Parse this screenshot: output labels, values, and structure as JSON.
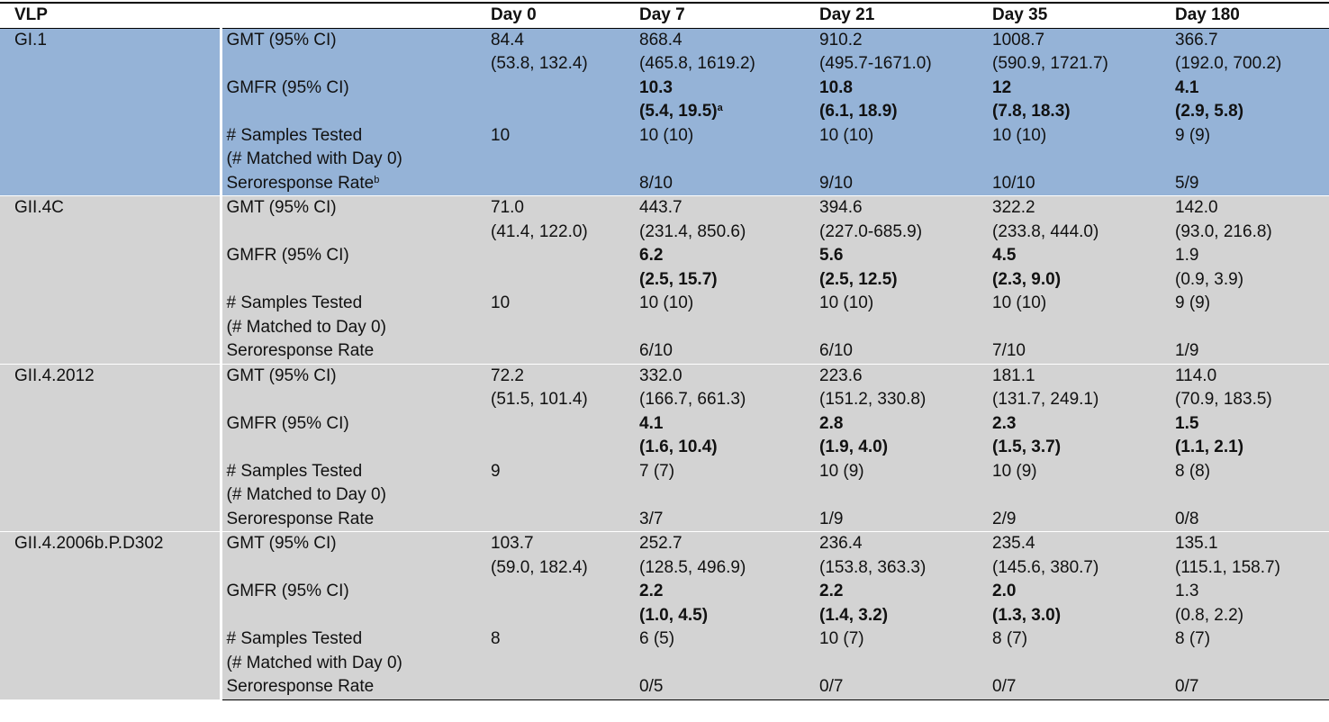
{
  "table": {
    "header": [
      "VLP",
      "Day 0",
      "Day 7",
      "Day 21",
      "Day 35",
      "Day 180"
    ],
    "groups": [
      {
        "name": "GI.1",
        "color": "#95b3d7",
        "rows": [
          {
            "label": {
              "lines": [
                "GMT (95% CI)"
              ]
            },
            "cells": [
              {
                "lines": [
                  "84.4",
                  "(53.8, 132.4)"
                ]
              },
              {
                "lines": [
                  "868.4",
                  "(465.8, 1619.2)"
                ]
              },
              {
                "lines": [
                  "910.2",
                  "(495.7-1671.0)"
                ]
              },
              {
                "lines": [
                  "1008.7",
                  "(590.9, 1721.7)"
                ]
              },
              {
                "lines": [
                  "366.7",
                  "(192.0, 700.2)"
                ]
              }
            ]
          },
          {
            "label": {
              "lines": [
                "GMFR (95% CI)"
              ]
            },
            "cells": [
              null,
              {
                "lines": [
                  "10.3",
                  "(5.4, 19.5)"
                ],
                "bold": true,
                "sup": "a"
              },
              {
                "lines": [
                  "10.8",
                  "(6.1, 18.9)"
                ],
                "bold": true
              },
              {
                "lines": [
                  "12",
                  "(7.8, 18.3)"
                ],
                "bold": true
              },
              {
                "lines": [
                  "4.1",
                  "(2.9, 5.8)"
                ],
                "bold": true
              }
            ]
          },
          {
            "label": {
              "lines": [
                "# Samples Tested",
                "(# Matched with Day 0)"
              ]
            },
            "cells": [
              {
                "lines": [
                  "10"
                ]
              },
              {
                "lines": [
                  "10 (10)"
                ]
              },
              {
                "lines": [
                  "10 (10)"
                ]
              },
              {
                "lines": [
                  "10 (10)"
                ]
              },
              {
                "lines": [
                  "9 (9)"
                ]
              }
            ]
          },
          {
            "label": {
              "lines": [
                "Seroresponse Rate"
              ],
              "sup": "b"
            },
            "cells": [
              null,
              {
                "lines": [
                  "8/10"
                ]
              },
              {
                "lines": [
                  "9/10"
                ]
              },
              {
                "lines": [
                  "10/10"
                ]
              },
              {
                "lines": [
                  "5/9"
                ]
              }
            ]
          }
        ]
      },
      {
        "name": "GII.4C",
        "color": "#d3d3d3",
        "rows": [
          {
            "label": {
              "lines": [
                "GMT (95% CI)"
              ]
            },
            "cells": [
              {
                "lines": [
                  "71.0",
                  "(41.4, 122.0)"
                ]
              },
              {
                "lines": [
                  "443.7",
                  "(231.4, 850.6)"
                ]
              },
              {
                "lines": [
                  "394.6",
                  "(227.0-685.9)"
                ]
              },
              {
                "lines": [
                  "322.2",
                  "(233.8, 444.0)"
                ]
              },
              {
                "lines": [
                  "142.0",
                  "(93.0, 216.8)"
                ]
              }
            ]
          },
          {
            "label": {
              "lines": [
                "GMFR (95% CI)"
              ]
            },
            "cells": [
              null,
              {
                "lines": [
                  "6.2",
                  "(2.5, 15.7)"
                ],
                "bold": true
              },
              {
                "lines": [
                  "5.6",
                  "(2.5, 12.5)"
                ],
                "bold": true
              },
              {
                "lines": [
                  "4.5",
                  "(2.3, 9.0)"
                ],
                "bold": true
              },
              {
                "lines": [
                  "1.9",
                  "(0.9, 3.9)"
                ]
              }
            ]
          },
          {
            "label": {
              "lines": [
                "# Samples Tested",
                "(# Matched to Day 0)"
              ]
            },
            "cells": [
              {
                "lines": [
                  "10"
                ]
              },
              {
                "lines": [
                  "10 (10)"
                ]
              },
              {
                "lines": [
                  "10 (10)"
                ]
              },
              {
                "lines": [
                  "10 (10)"
                ]
              },
              {
                "lines": [
                  "9 (9)"
                ]
              }
            ]
          },
          {
            "label": {
              "lines": [
                "Seroresponse Rate"
              ]
            },
            "cells": [
              null,
              {
                "lines": [
                  "6/10"
                ]
              },
              {
                "lines": [
                  "6/10"
                ]
              },
              {
                "lines": [
                  "7/10"
                ]
              },
              {
                "lines": [
                  "1/9"
                ]
              }
            ]
          }
        ]
      },
      {
        "name": "GII.4.2012",
        "color": "#d3d3d3",
        "rows": [
          {
            "label": {
              "lines": [
                "GMT (95% CI)"
              ]
            },
            "cells": [
              {
                "lines": [
                  "72.2",
                  "(51.5, 101.4)"
                ]
              },
              {
                "lines": [
                  "332.0",
                  "(166.7, 661.3)"
                ]
              },
              {
                "lines": [
                  "223.6",
                  "(151.2, 330.8)"
                ]
              },
              {
                "lines": [
                  "181.1",
                  "(131.7, 249.1)"
                ]
              },
              {
                "lines": [
                  "114.0",
                  "(70.9, 183.5)"
                ]
              }
            ]
          },
          {
            "label": {
              "lines": [
                "GMFR (95% CI)"
              ]
            },
            "cells": [
              null,
              {
                "lines": [
                  "4.1",
                  "(1.6, 10.4)"
                ],
                "bold": true
              },
              {
                "lines": [
                  "2.8",
                  "(1.9, 4.0)"
                ],
                "bold": true
              },
              {
                "lines": [
                  "2.3",
                  "(1.5, 3.7)"
                ],
                "bold": true
              },
              {
                "lines": [
                  "1.5",
                  "(1.1, 2.1)"
                ],
                "bold": true
              }
            ]
          },
          {
            "label": {
              "lines": [
                "# Samples Tested",
                "(# Matched to Day 0)"
              ]
            },
            "cells": [
              {
                "lines": [
                  "9"
                ]
              },
              {
                "lines": [
                  "7 (7)"
                ]
              },
              {
                "lines": [
                  "10 (9)"
                ]
              },
              {
                "lines": [
                  "10 (9)"
                ]
              },
              {
                "lines": [
                  "8 (8)"
                ]
              }
            ]
          },
          {
            "label": {
              "lines": [
                "Seroresponse Rate"
              ]
            },
            "cells": [
              null,
              {
                "lines": [
                  "3/7"
                ]
              },
              {
                "lines": [
                  "1/9"
                ]
              },
              {
                "lines": [
                  "2/9"
                ]
              },
              {
                "lines": [
                  "0/8"
                ]
              }
            ]
          }
        ]
      },
      {
        "name": "GII.4.2006b.P.D302",
        "color": "#d3d3d3",
        "rows": [
          {
            "label": {
              "lines": [
                "GMT (95% CI)"
              ]
            },
            "cells": [
              {
                "lines": [
                  "103.7",
                  "(59.0, 182.4)"
                ]
              },
              {
                "lines": [
                  "252.7",
                  "(128.5, 496.9)"
                ]
              },
              {
                "lines": [
                  "236.4",
                  "(153.8, 363.3)"
                ]
              },
              {
                "lines": [
                  "235.4",
                  "(145.6, 380.7)"
                ]
              },
              {
                "lines": [
                  "135.1",
                  "(115.1, 158.7)"
                ]
              }
            ]
          },
          {
            "label": {
              "lines": [
                "GMFR (95% CI)"
              ]
            },
            "cells": [
              null,
              {
                "lines": [
                  "2.2",
                  "(1.0, 4.5)"
                ],
                "bold": true
              },
              {
                "lines": [
                  "2.2",
                  "(1.4, 3.2)"
                ],
                "bold": true
              },
              {
                "lines": [
                  "2.0",
                  "(1.3, 3.0)"
                ],
                "bold": true
              },
              {
                "lines": [
                  "1.3",
                  "(0.8, 2.2)"
                ]
              }
            ]
          },
          {
            "label": {
              "lines": [
                "# Samples Tested",
                "(# Matched with Day 0)"
              ]
            },
            "cells": [
              {
                "lines": [
                  "8"
                ]
              },
              {
                "lines": [
                  "6 (5)"
                ]
              },
              {
                "lines": [
                  "10 (7)"
                ]
              },
              {
                "lines": [
                  "8 (7)"
                ]
              },
              {
                "lines": [
                  "8 (7)"
                ]
              }
            ]
          },
          {
            "label": {
              "lines": [
                "Seroresponse Rate"
              ]
            },
            "cells": [
              null,
              {
                "lines": [
                  "0/5"
                ]
              },
              {
                "lines": [
                  "0/7"
                ]
              },
              {
                "lines": [
                  "0/7"
                ]
              },
              {
                "lines": [
                  "0/7"
                ]
              }
            ]
          }
        ]
      }
    ]
  }
}
